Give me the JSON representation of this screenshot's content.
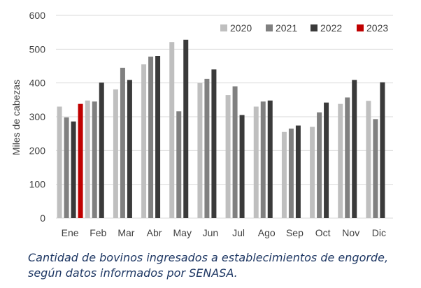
{
  "chart_data": {
    "type": "bar",
    "ylabel": "Miles de cabezas",
    "ylim": [
      0,
      600
    ],
    "yticks": [
      "0",
      "100",
      "200",
      "300",
      "400",
      "500",
      "600"
    ],
    "grid": true,
    "legend_position": "top-right",
    "categories": [
      "Ene",
      "Feb",
      "Mar",
      "Abr",
      "May",
      "Jun",
      "Jul",
      "Ago",
      "Sep",
      "Oct",
      "Nov",
      "Dic"
    ],
    "series": [
      {
        "name": "2020",
        "color": "#bfbfbf",
        "values": [
          330,
          348,
          381,
          455,
          521,
          400,
          364,
          330,
          255,
          270,
          338,
          347
        ]
      },
      {
        "name": "2021",
        "color": "#808080",
        "values": [
          298,
          345,
          445,
          478,
          316,
          412,
          390,
          345,
          265,
          313,
          357,
          293
        ]
      },
      {
        "name": "2022",
        "color": "#3a3a3a",
        "values": [
          286,
          401,
          409,
          480,
          528,
          440,
          305,
          348,
          274,
          342,
          409,
          402
        ]
      },
      {
        "name": "2023",
        "color": "#c00000",
        "values": [
          338,
          null,
          null,
          null,
          null,
          null,
          null,
          null,
          null,
          null,
          null,
          null
        ]
      }
    ]
  },
  "caption": {
    "line1": "Cantidad de bovinos ingresados a establecimientos de engorde,",
    "line2": "según datos informados por SENASA."
  }
}
